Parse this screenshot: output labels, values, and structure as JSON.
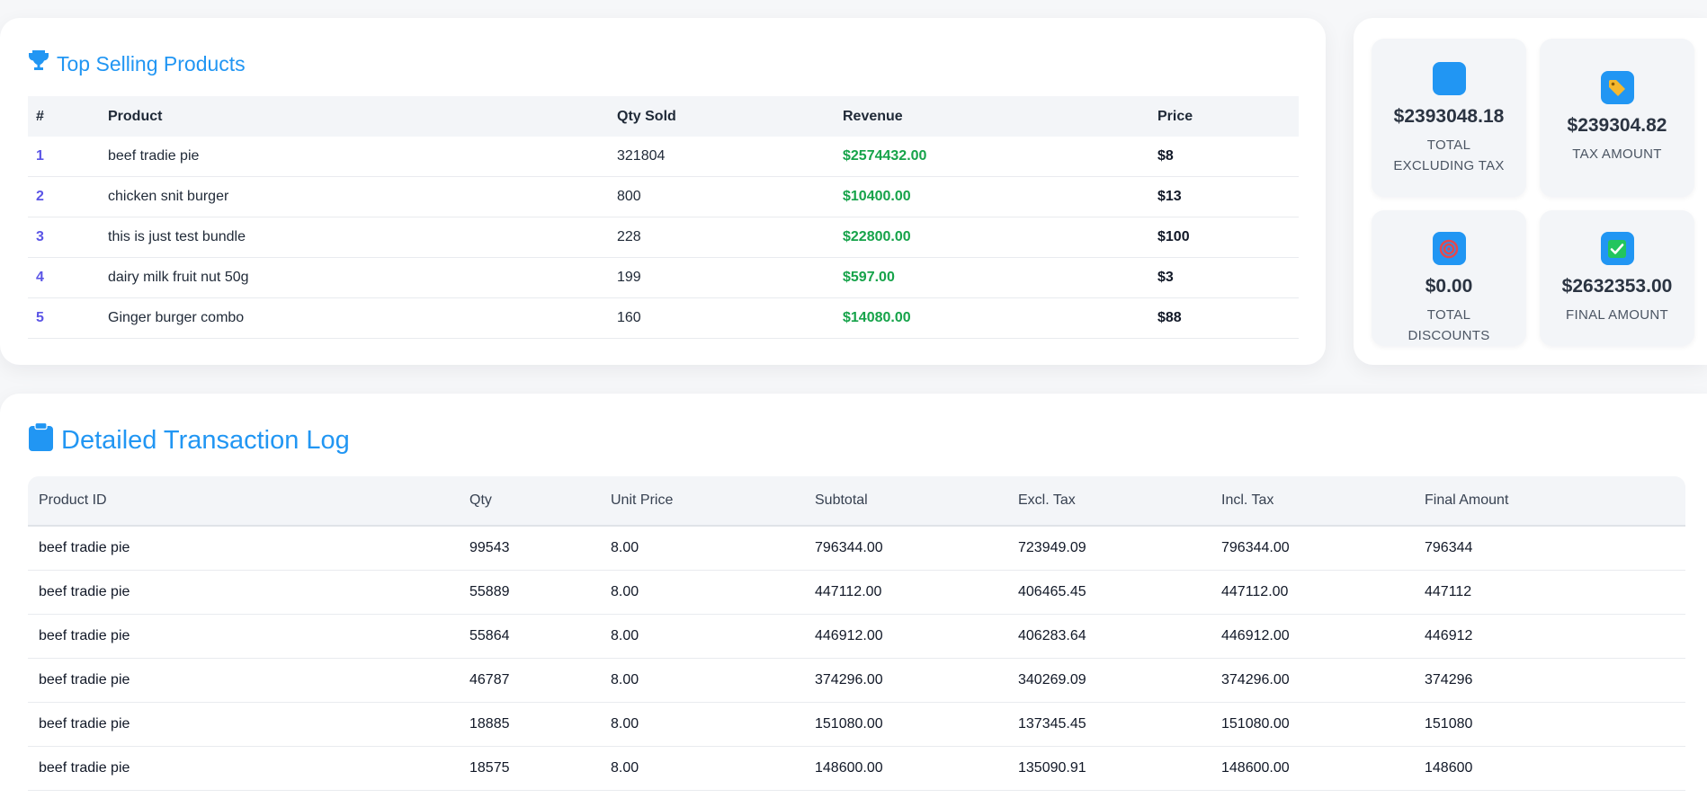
{
  "top_products": {
    "title": "Top Selling Products",
    "title_icon": "trophy-icon",
    "columns": [
      "#",
      "Product",
      "Qty Sold",
      "Revenue",
      "Price"
    ],
    "rows": [
      {
        "rank": "1",
        "product": "beef tradie pie",
        "qty": "321804",
        "revenue": "$2574432.00",
        "price": "$8"
      },
      {
        "rank": "2",
        "product": "chicken snit burger",
        "qty": "800",
        "revenue": "$10400.00",
        "price": "$13"
      },
      {
        "rank": "3",
        "product": "this is just test bundle",
        "qty": "228",
        "revenue": "$22800.00",
        "price": "$100"
      },
      {
        "rank": "4",
        "product": "dairy milk fruit nut 50g",
        "qty": "199",
        "revenue": "$597.00",
        "price": "$3"
      },
      {
        "rank": "5",
        "product": "Ginger burger combo",
        "qty": "160",
        "revenue": "$14080.00",
        "price": "$88"
      }
    ]
  },
  "stats": {
    "excl": {
      "value": "$2393048.18",
      "label": "TOTAL EXCLUDING TAX",
      "icon": "blank-square-icon"
    },
    "tax": {
      "value": "$239304.82",
      "label": "TAX AMOUNT",
      "icon": "tag-icon"
    },
    "disc": {
      "value": "$0.00",
      "label": "TOTAL DISCOUNTS",
      "icon": "target-icon"
    },
    "final": {
      "value": "$2632353.00",
      "label": "FINAL AMOUNT",
      "icon": "check-mark-icon"
    }
  },
  "log": {
    "title": "Detailed Transaction Log",
    "title_icon": "clipboard-icon",
    "columns": [
      "Product ID",
      "Qty",
      "Unit Price",
      "Subtotal",
      "Excl. Tax",
      "Incl. Tax",
      "Final Amount"
    ],
    "rows": [
      {
        "pid": "beef tradie pie",
        "qty": "99543",
        "unit": "8.00",
        "sub": "796344.00",
        "excl": "723949.09",
        "incl": "796344.00",
        "final": "796344"
      },
      {
        "pid": "beef tradie pie",
        "qty": "55889",
        "unit": "8.00",
        "sub": "447112.00",
        "excl": "406465.45",
        "incl": "447112.00",
        "final": "447112"
      },
      {
        "pid": "beef tradie pie",
        "qty": "55864",
        "unit": "8.00",
        "sub": "446912.00",
        "excl": "406283.64",
        "incl": "446912.00",
        "final": "446912"
      },
      {
        "pid": "beef tradie pie",
        "qty": "46787",
        "unit": "8.00",
        "sub": "374296.00",
        "excl": "340269.09",
        "incl": "374296.00",
        "final": "374296"
      },
      {
        "pid": "beef tradie pie",
        "qty": "18885",
        "unit": "8.00",
        "sub": "151080.00",
        "excl": "137345.45",
        "incl": "151080.00",
        "final": "151080"
      },
      {
        "pid": "beef tradie pie",
        "qty": "18575",
        "unit": "8.00",
        "sub": "148600.00",
        "excl": "135090.91",
        "incl": "148600.00",
        "final": "148600"
      }
    ]
  },
  "colors": {
    "accent": "#2196f3",
    "rank": "#5b55e6",
    "revenue": "#16a34a",
    "tag": "#f5b82e",
    "target": "#e5484d",
    "check": "#22c55e"
  }
}
